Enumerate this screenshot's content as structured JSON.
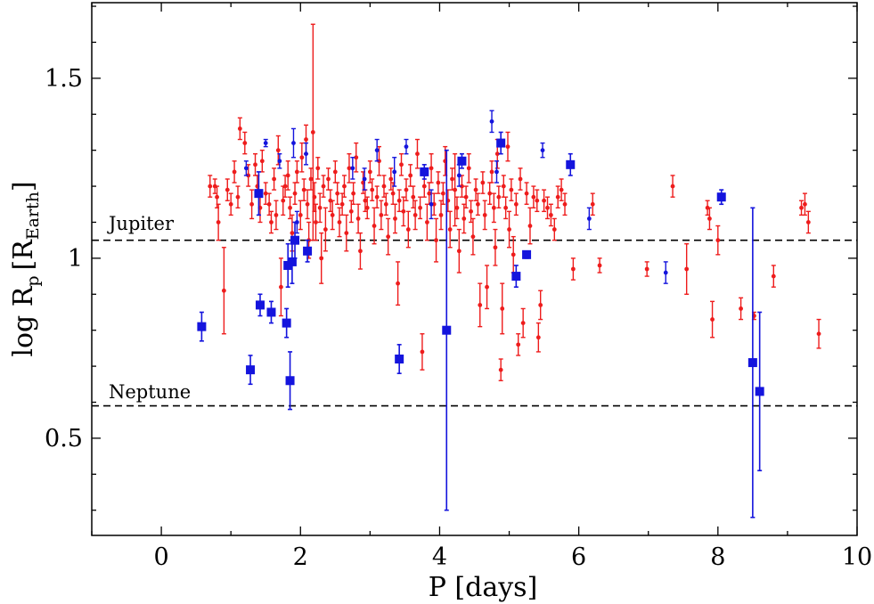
{
  "chart_data": {
    "type": "scatter",
    "title": "",
    "xlabel": "P [days]",
    "ylabel": {
      "main": "log R",
      "sub_p": "p",
      "bracket_open": "[R",
      "sub_earth": "Earth",
      "bracket_close": "]"
    },
    "xlim": [
      -1,
      10
    ],
    "ylim": [
      0.23,
      1.71
    ],
    "x_ticks": [
      0,
      2,
      4,
      6,
      8,
      10
    ],
    "x_tick_labels": [
      "0",
      "2",
      "4",
      "6",
      "8",
      "10"
    ],
    "y_ticks": [
      0.5,
      1.0,
      1.5
    ],
    "y_tick_labels": [
      "0.5",
      "1",
      "1.5"
    ],
    "reference_lines": [
      {
        "name": "Jupiter",
        "y": 1.05
      },
      {
        "name": "Neptune",
        "y": 0.59
      }
    ],
    "colors": {
      "red": "#ee1c1c",
      "blue": "#1414dd",
      "axis": "#000000",
      "refline": "#000000"
    },
    "series": [
      {
        "name": "red-points",
        "marker": "circle",
        "color": "#ee1c1c",
        "points": [
          [
            0.7,
            1.2,
            0.03
          ],
          [
            0.77,
            1.2,
            0.02
          ],
          [
            0.8,
            1.17,
            0.03
          ],
          [
            0.82,
            1.1,
            0.05
          ],
          [
            0.9,
            0.91,
            0.12
          ],
          [
            0.95,
            1.19,
            0.03
          ],
          [
            1.0,
            1.15,
            0.03
          ],
          [
            1.05,
            1.24,
            0.03
          ],
          [
            1.1,
            1.17,
            0.03
          ],
          [
            1.13,
            1.36,
            0.03
          ],
          [
            1.2,
            1.32,
            0.03
          ],
          [
            1.25,
            1.23,
            0.03
          ],
          [
            1.3,
            1.15,
            0.04
          ],
          [
            1.35,
            1.26,
            0.03
          ],
          [
            1.38,
            1.2,
            0.03
          ],
          [
            1.42,
            1.14,
            0.04
          ],
          [
            1.45,
            1.27,
            0.03
          ],
          [
            1.5,
            1.18,
            0.03
          ],
          [
            1.55,
            1.15,
            0.03
          ],
          [
            1.58,
            1.1,
            0.03
          ],
          [
            1.62,
            1.22,
            0.03
          ],
          [
            1.65,
            1.12,
            0.04
          ],
          [
            1.68,
            1.3,
            0.04
          ],
          [
            1.72,
            0.92,
            0.08
          ],
          [
            1.75,
            1.16,
            0.04
          ],
          [
            1.78,
            1.2,
            0.03
          ],
          [
            1.82,
            1.23,
            0.04
          ],
          [
            1.85,
            1.14,
            0.03
          ],
          [
            1.88,
            1.07,
            0.05
          ],
          [
            1.92,
            1.18,
            0.03
          ],
          [
            1.95,
            1.24,
            0.03
          ],
          [
            2.0,
            1.12,
            0.04
          ],
          [
            2.02,
            1.28,
            0.04
          ],
          [
            2.05,
            1.19,
            0.03
          ],
          [
            2.08,
            1.33,
            0.04
          ],
          [
            2.1,
            1.15,
            0.04
          ],
          [
            2.12,
            1.05,
            0.05
          ],
          [
            2.15,
            1.22,
            0.03
          ],
          [
            2.18,
            1.35,
            0.3
          ],
          [
            2.2,
            1.17,
            0.04
          ],
          [
            2.22,
            1.1,
            0.05
          ],
          [
            2.25,
            1.25,
            0.03
          ],
          [
            2.28,
            1.14,
            0.04
          ],
          [
            2.3,
            1.0,
            0.07
          ],
          [
            2.33,
            1.2,
            0.03
          ],
          [
            2.36,
            1.08,
            0.06
          ],
          [
            2.4,
            1.22,
            0.03
          ],
          [
            2.43,
            1.16,
            0.03
          ],
          [
            2.46,
            1.12,
            0.04
          ],
          [
            2.5,
            1.24,
            0.03
          ],
          [
            2.53,
            1.18,
            0.03
          ],
          [
            2.56,
            1.1,
            0.04
          ],
          [
            2.6,
            1.15,
            0.03
          ],
          [
            2.63,
            1.2,
            0.03
          ],
          [
            2.66,
            1.07,
            0.05
          ],
          [
            2.7,
            1.25,
            0.04
          ],
          [
            2.73,
            1.13,
            0.03
          ],
          [
            2.76,
            1.18,
            0.03
          ],
          [
            2.8,
            1.28,
            0.04
          ],
          [
            2.83,
            1.11,
            0.04
          ],
          [
            2.86,
            1.02,
            0.05
          ],
          [
            2.9,
            1.21,
            0.03
          ],
          [
            2.93,
            1.16,
            0.03
          ],
          [
            2.96,
            1.14,
            0.03
          ],
          [
            3.0,
            1.24,
            0.03
          ],
          [
            3.03,
            1.19,
            0.03
          ],
          [
            3.06,
            1.09,
            0.05
          ],
          [
            3.1,
            1.17,
            0.03
          ],
          [
            3.13,
            1.27,
            0.04
          ],
          [
            3.16,
            1.12,
            0.04
          ],
          [
            3.2,
            1.2,
            0.03
          ],
          [
            3.23,
            1.15,
            0.03
          ],
          [
            3.26,
            1.06,
            0.05
          ],
          [
            3.3,
            1.22,
            0.03
          ],
          [
            3.33,
            1.18,
            0.03
          ],
          [
            3.36,
            1.11,
            0.04
          ],
          [
            3.4,
            0.93,
            0.06
          ],
          [
            3.42,
            1.16,
            0.03
          ],
          [
            3.45,
            1.26,
            0.03
          ],
          [
            3.48,
            1.13,
            0.04
          ],
          [
            3.52,
            1.19,
            0.03
          ],
          [
            3.55,
            1.08,
            0.05
          ],
          [
            3.58,
            1.23,
            0.03
          ],
          [
            3.62,
            1.17,
            0.03
          ],
          [
            3.65,
            1.12,
            0.04
          ],
          [
            3.68,
            1.29,
            0.04
          ],
          [
            3.72,
            1.14,
            0.03
          ],
          [
            3.75,
            0.74,
            0.05
          ],
          [
            3.78,
            1.2,
            0.03
          ],
          [
            3.82,
            1.1,
            0.05
          ],
          [
            3.85,
            1.18,
            0.03
          ],
          [
            3.88,
            1.25,
            0.04
          ],
          [
            3.92,
            1.15,
            0.03
          ],
          [
            3.95,
            1.05,
            0.06
          ],
          [
            3.98,
            1.21,
            0.03
          ],
          [
            4.02,
            1.12,
            0.04
          ],
          [
            4.05,
            1.18,
            0.03
          ],
          [
            4.08,
            1.27,
            0.04
          ],
          [
            4.12,
            1.16,
            0.03
          ],
          [
            4.15,
            1.08,
            0.05
          ],
          [
            4.18,
            1.22,
            0.03
          ],
          [
            4.22,
            1.19,
            0.1
          ],
          [
            4.25,
            1.14,
            0.03
          ],
          [
            4.28,
            1.02,
            0.06
          ],
          [
            4.32,
            1.2,
            0.03
          ],
          [
            4.35,
            1.11,
            0.04
          ],
          [
            4.38,
            1.17,
            0.03
          ],
          [
            4.42,
            1.25,
            0.04
          ],
          [
            4.45,
            1.13,
            0.03
          ],
          [
            4.48,
            1.06,
            0.05
          ],
          [
            4.52,
            1.19,
            0.03
          ],
          [
            4.55,
            1.15,
            0.03
          ],
          [
            4.58,
            0.87,
            0.06
          ],
          [
            4.62,
            1.21,
            0.03
          ],
          [
            4.65,
            1.12,
            0.04
          ],
          [
            4.68,
            0.92,
            0.06
          ],
          [
            4.72,
            1.18,
            0.03
          ],
          [
            4.75,
            1.24,
            0.03
          ],
          [
            4.78,
            1.14,
            0.04
          ],
          [
            4.8,
            1.03,
            0.05
          ],
          [
            4.83,
            1.29,
            0.04
          ],
          [
            4.85,
            1.17,
            0.03
          ],
          [
            4.88,
            0.69,
            0.03
          ],
          [
            4.9,
            0.86,
            0.07
          ],
          [
            4.92,
            1.2,
            0.03
          ],
          [
            4.95,
            1.14,
            0.03
          ],
          [
            4.98,
            1.31,
            0.04
          ],
          [
            5.0,
            1.08,
            0.05
          ],
          [
            5.03,
            1.19,
            0.03
          ],
          [
            5.06,
            1.01,
            0.05
          ],
          [
            5.1,
            1.15,
            0.03
          ],
          [
            5.13,
            0.76,
            0.03
          ],
          [
            5.16,
            1.22,
            0.03
          ],
          [
            5.2,
            0.82,
            0.04
          ],
          [
            5.25,
            1.18,
            0.03
          ],
          [
            5.3,
            1.09,
            0.05
          ],
          [
            5.35,
            1.17,
            0.03
          ],
          [
            5.4,
            1.16,
            0.03
          ],
          [
            5.42,
            0.78,
            0.04
          ],
          [
            5.45,
            0.87,
            0.04
          ],
          [
            5.5,
            1.16,
            0.03
          ],
          [
            5.55,
            1.14,
            0.03
          ],
          [
            5.6,
            1.12,
            0.03
          ],
          [
            5.65,
            1.08,
            0.03
          ],
          [
            5.7,
            1.17,
            0.03
          ],
          [
            5.75,
            1.19,
            0.03
          ],
          [
            5.8,
            1.15,
            0.03
          ],
          [
            5.92,
            0.97,
            0.03
          ],
          [
            6.2,
            1.15,
            0.03
          ],
          [
            6.3,
            0.98,
            0.02
          ],
          [
            6.98,
            0.97,
            0.02
          ],
          [
            7.35,
            1.2,
            0.03
          ],
          [
            7.55,
            0.97,
            0.07
          ],
          [
            7.85,
            1.14,
            0.02
          ],
          [
            7.88,
            1.11,
            0.03
          ],
          [
            7.92,
            0.83,
            0.05
          ],
          [
            8.0,
            1.05,
            0.04
          ],
          [
            8.33,
            0.86,
            0.03
          ],
          [
            8.52,
            0.84,
            0.01
          ],
          [
            8.8,
            0.95,
            0.03
          ],
          [
            9.2,
            1.14,
            0.02
          ],
          [
            9.25,
            1.15,
            0.03
          ],
          [
            9.3,
            1.1,
            0.03
          ],
          [
            9.45,
            0.79,
            0.04
          ]
        ]
      },
      {
        "name": "blue-points",
        "marker": "circle",
        "color": "#1414dd",
        "points": [
          [
            1.22,
            1.25,
            0.02
          ],
          [
            1.5,
            1.32,
            0.01
          ],
          [
            1.7,
            1.27,
            0.02
          ],
          [
            1.9,
            1.32,
            0.04
          ],
          [
            1.95,
            1.1,
            0.03
          ],
          [
            2.08,
            1.29,
            0.03
          ],
          [
            2.75,
            1.25,
            0.03
          ],
          [
            2.92,
            1.22,
            0.03
          ],
          [
            3.1,
            1.3,
            0.03
          ],
          [
            3.35,
            1.24,
            0.04
          ],
          [
            3.52,
            1.31,
            0.02
          ],
          [
            3.88,
            1.15,
            0.04
          ],
          [
            4.28,
            1.23,
            0.03
          ],
          [
            4.75,
            1.38,
            0.03
          ],
          [
            4.82,
            1.24,
            0.03
          ],
          [
            5.48,
            1.3,
            0.02
          ],
          [
            6.15,
            1.11,
            0.03
          ],
          [
            7.25,
            0.96,
            0.03
          ]
        ]
      },
      {
        "name": "blue-squares",
        "marker": "square",
        "color": "#1414dd",
        "points": [
          [
            0.58,
            0.81,
            0.04
          ],
          [
            1.28,
            0.69,
            0.04
          ],
          [
            1.4,
            1.18,
            0.06
          ],
          [
            1.42,
            0.87,
            0.03
          ],
          [
            1.58,
            0.85,
            0.03
          ],
          [
            1.8,
            0.82,
            0.04
          ],
          [
            1.82,
            0.98,
            0.06
          ],
          [
            1.85,
            0.66,
            0.08
          ],
          [
            1.88,
            0.99,
            0.06
          ],
          [
            1.92,
            1.05,
            0.05
          ],
          [
            2.1,
            1.02,
            0.03
          ],
          [
            3.42,
            0.72,
            0.04
          ],
          [
            3.78,
            1.24,
            0.02
          ],
          [
            4.1,
            0.8,
            0.5
          ],
          [
            4.32,
            1.27,
            0.02
          ],
          [
            4.88,
            1.32,
            0.03
          ],
          [
            5.1,
            0.95,
            0.03
          ],
          [
            5.25,
            1.01,
            0.01
          ],
          [
            5.88,
            1.26,
            0.03
          ],
          [
            8.05,
            1.17,
            0.02
          ],
          [
            8.5,
            0.71,
            0.43
          ],
          [
            8.6,
            0.63,
            0.22
          ]
        ]
      }
    ]
  }
}
